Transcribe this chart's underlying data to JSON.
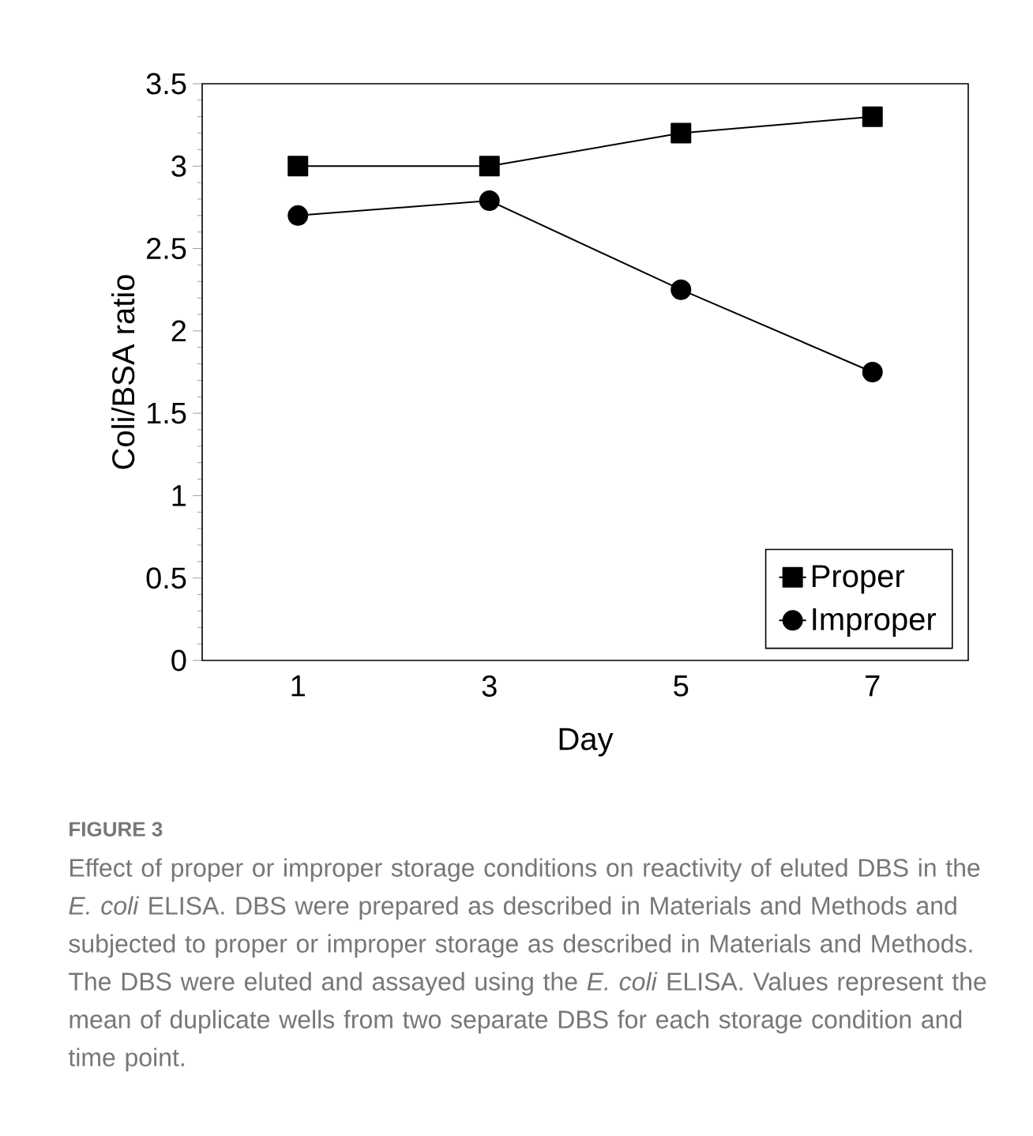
{
  "chart_data": {
    "type": "line",
    "title": "FIGURE 3",
    "xlabel": "Day",
    "ylabel": "Coli/BSA ratio",
    "categories": [
      "1",
      "3",
      "5",
      "7"
    ],
    "series": [
      {
        "name": "Proper",
        "color": "#000000",
        "marker": "square",
        "values": [
          3.0,
          3.0,
          3.2,
          3.3
        ]
      },
      {
        "name": "Improper",
        "color": "#000000",
        "marker": "circle",
        "values": [
          2.7,
          2.79,
          2.25,
          1.75
        ]
      }
    ],
    "ylim": [
      0,
      3.5
    ],
    "yticks": [
      0,
      0.5,
      1,
      1.5,
      2,
      2.5,
      3,
      3.5
    ],
    "grid": false,
    "legend": "bottom right",
    "line_style": "solid",
    "annotations": [
      "Effect of proper or improper storage conditions on reactivity of eluted DBS in the *E. coli* ELISA. DBS were prepared as described in Materials and Methods and subjected to proper or improper storage as described in Materials and Methods. The DBS were eluted and assayed using the *E. coli* ELISA. Values represent the mean of duplicate wells from two separate DBS for each storage condition and time point."
    ]
  }
}
